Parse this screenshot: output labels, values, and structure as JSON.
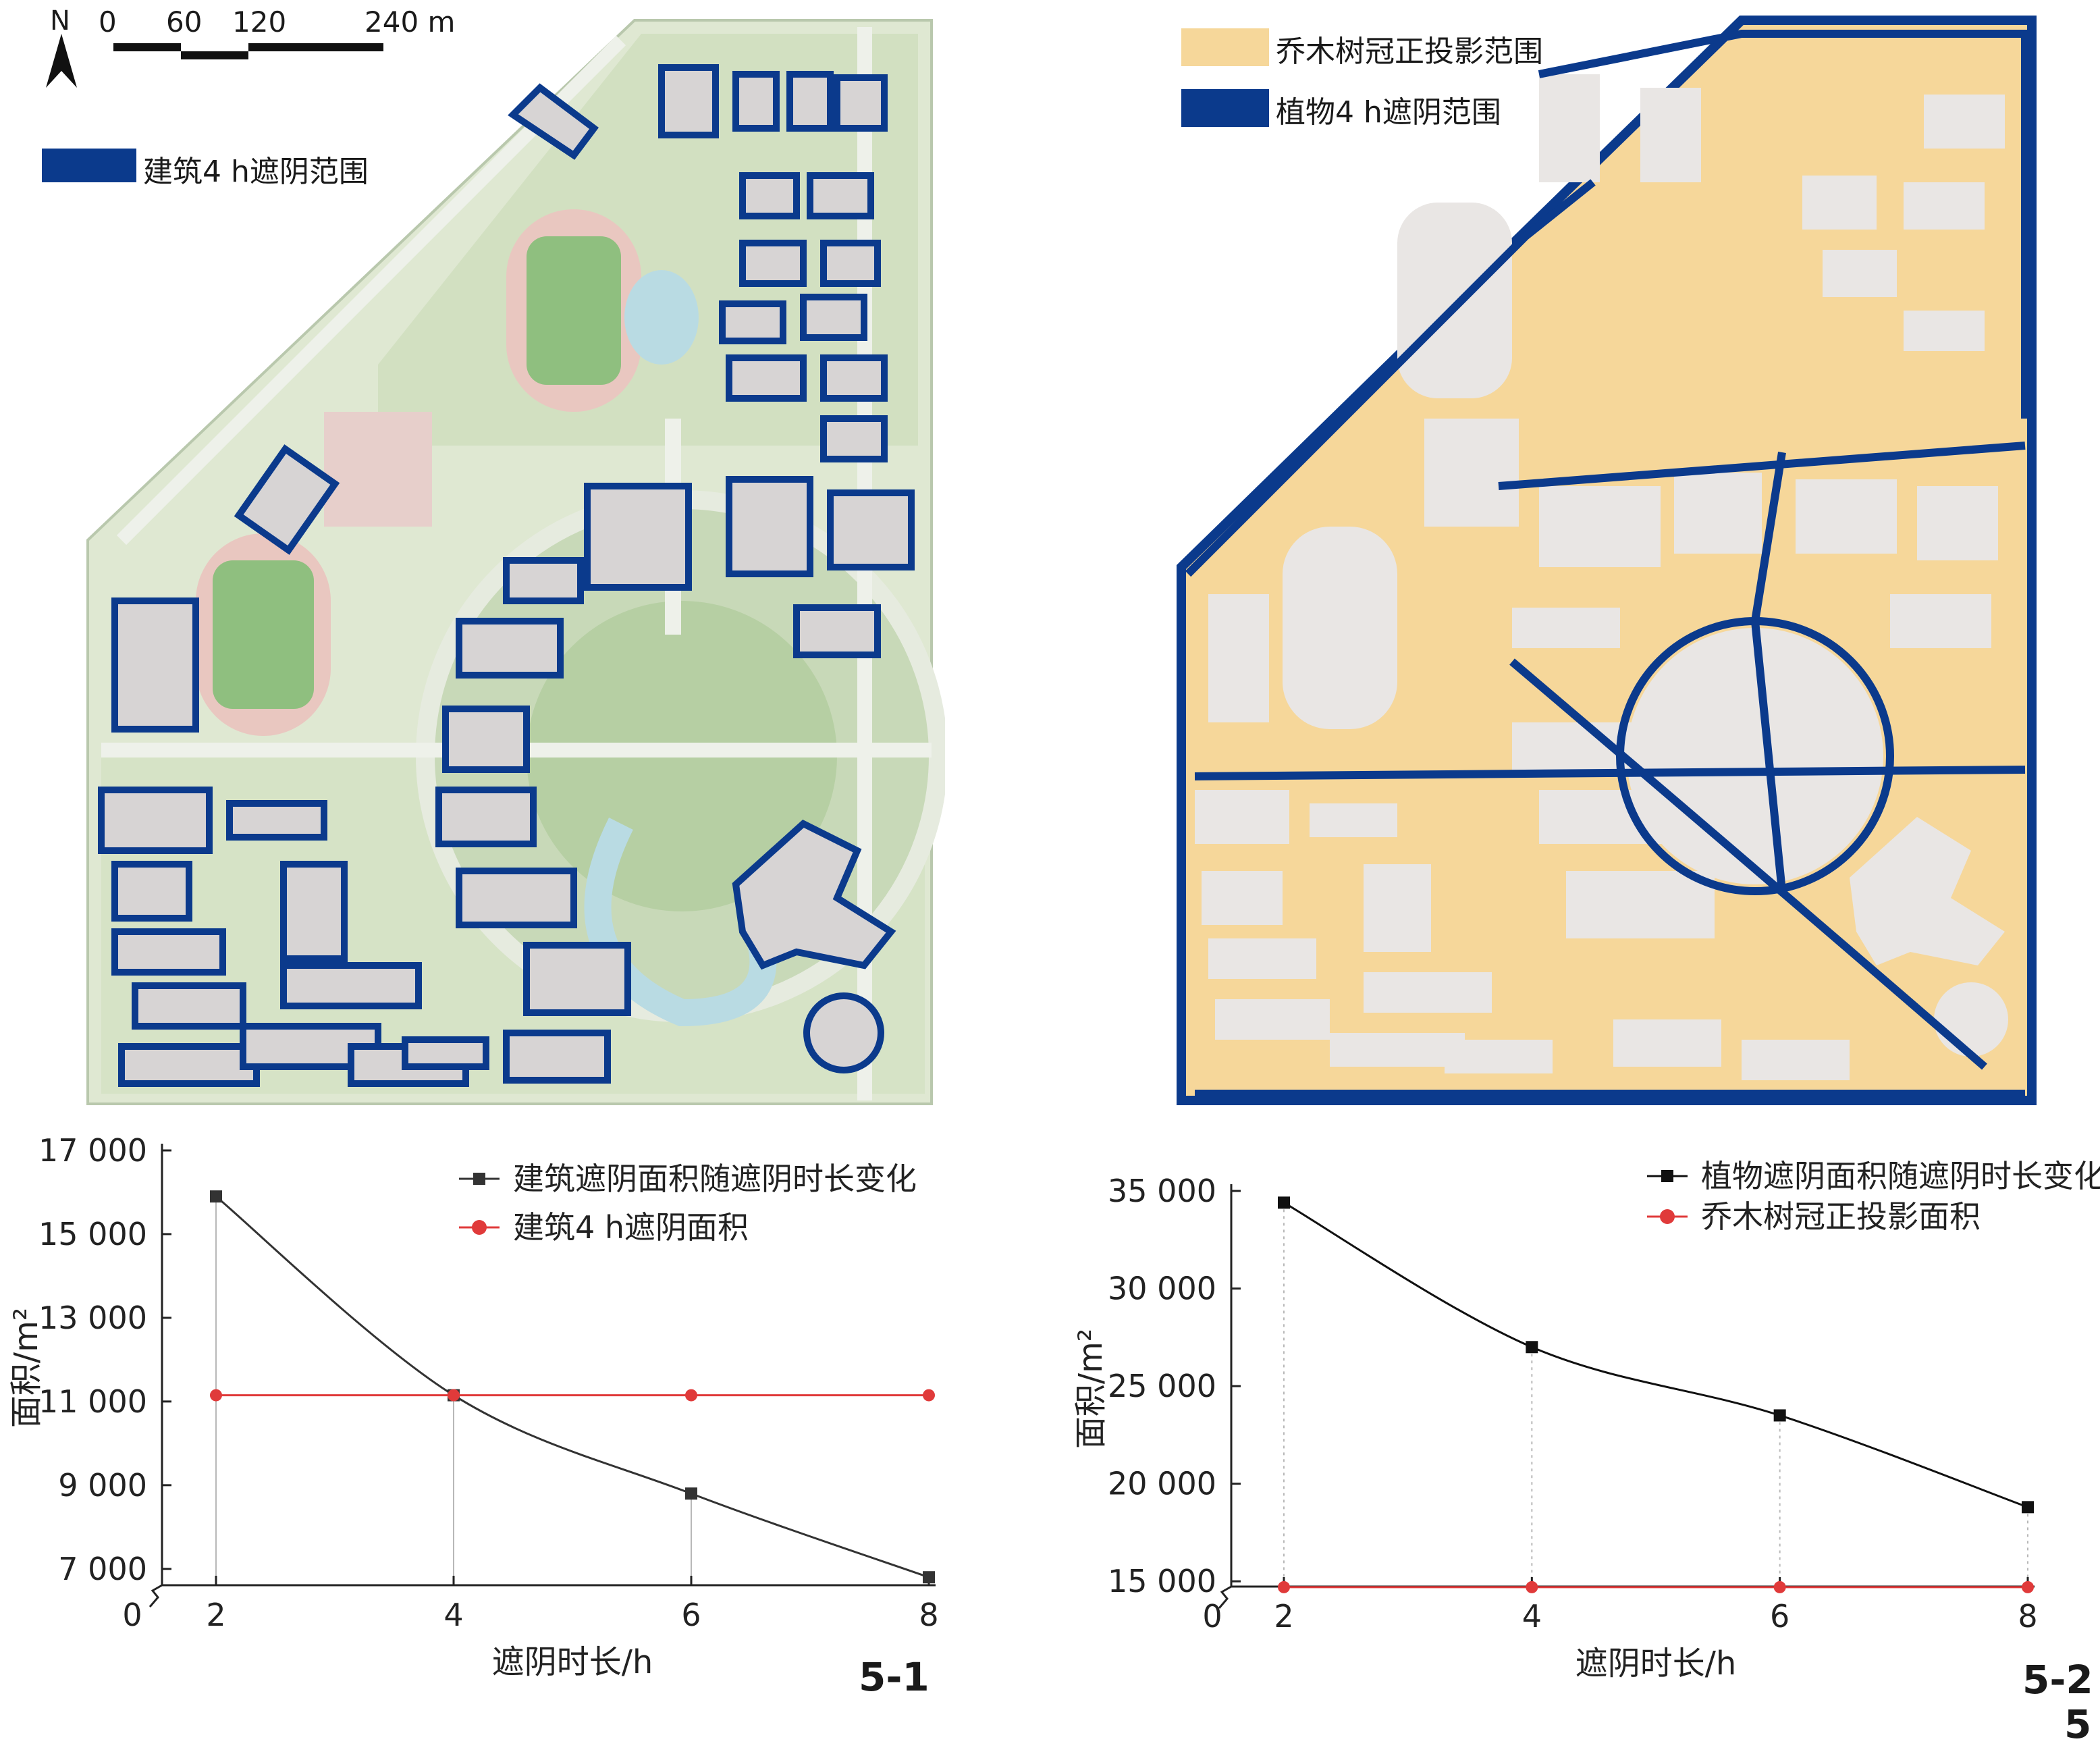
{
  "map_left": {
    "north_label": "N",
    "scale_labels": [
      "0",
      "60",
      "120",
      "240 m"
    ],
    "legend": [
      {
        "label": "建筑4 h遮阴范围",
        "color": "#0b3a8c"
      }
    ]
  },
  "map_right": {
    "legend": [
      {
        "label": "乔木树冠正投影范围",
        "color": "#f6d79a"
      },
      {
        "label": "植物4 h遮阴范围",
        "color": "#0b3a8c"
      }
    ]
  },
  "figure_labels": {
    "left": "5-1",
    "right": "5-2",
    "right_extra": "5"
  },
  "chart_data": [
    {
      "type": "line",
      "xlabel": "遮阴时长/h",
      "ylabel": "面积/m²",
      "x": [
        2,
        4,
        6,
        8
      ],
      "x_ticks": [
        "2",
        "4",
        "6",
        "8"
      ],
      "x_origin_label": "0",
      "y_ticks": [
        "17 000",
        "15 000",
        "13 000",
        "11 000",
        "9 000",
        "7 000"
      ],
      "y_tick_values": [
        17000,
        15000,
        13000,
        11000,
        9000,
        7000
      ],
      "ylim": [
        6900,
        17000
      ],
      "series": [
        {
          "name": "建筑遮阴面积随遮阴时长变化",
          "values": [
            15900,
            11150,
            8800,
            6800
          ],
          "color": "#333333",
          "marker": "square"
        },
        {
          "name": "建筑4 h遮阴面积",
          "values": [
            11150,
            11150,
            11150,
            11150
          ],
          "color": "#e03a3a",
          "marker": "circle"
        }
      ]
    },
    {
      "type": "line",
      "xlabel": "遮阴时长/h",
      "ylabel": "面积/m²",
      "x": [
        2,
        4,
        6,
        8
      ],
      "x_ticks": [
        "2",
        "4",
        "6",
        "8"
      ],
      "x_origin_label": "0",
      "y_ticks": [
        "35 000",
        "30 000",
        "25 000",
        "20 000",
        "15 000"
      ],
      "y_tick_values": [
        35000,
        30000,
        25000,
        20000,
        15000
      ],
      "ylim": [
        14800,
        35000
      ],
      "series": [
        {
          "name": "植物遮阴面积随遮阴时长变化",
          "values": [
            34400,
            27000,
            23500,
            18800
          ],
          "color": "#111111",
          "marker": "square"
        },
        {
          "name": "乔木树冠正投影面积",
          "values": [
            14700,
            14700,
            14700,
            14700
          ],
          "color": "#e03a3a",
          "marker": "circle"
        }
      ]
    }
  ]
}
